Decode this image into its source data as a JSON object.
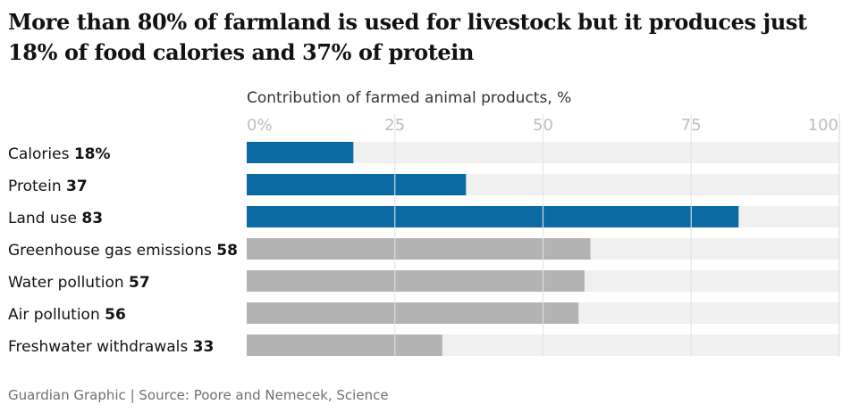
{
  "title": "More than 80% of farmland is used for livestock but it produces just 18% of food calories and 37% of protein",
  "source": "Guardian Graphic | Source: Poore and Nemecek, Science",
  "colors": {
    "highlight": "#0a6aa1",
    "other": "#b3b3b3",
    "track": "#f0f0f0",
    "gridline": "#dcdcdc",
    "tick_text": "#bdbdbd",
    "label_text": "#121212"
  },
  "chart_data": {
    "type": "bar",
    "orientation": "horizontal",
    "title": "Contribution of farmed animal products, %",
    "xlim": [
      0,
      100
    ],
    "ticks": [
      0,
      25,
      50,
      75,
      100
    ],
    "tick_labels": [
      "0%",
      "25",
      "50",
      "75",
      "100"
    ],
    "grid": true,
    "categories": [
      "Calories",
      "Protein",
      "Land use",
      "Greenhouse gas emissions",
      "Water pollution",
      "Air pollution",
      "Freshwater withdrawals"
    ],
    "value_labels": [
      "18%",
      "37",
      "83",
      "58",
      "57",
      "56",
      "33"
    ],
    "values": [
      18,
      37,
      83,
      58,
      57,
      56,
      33
    ],
    "highlighted": [
      true,
      true,
      true,
      false,
      false,
      false,
      false
    ]
  }
}
